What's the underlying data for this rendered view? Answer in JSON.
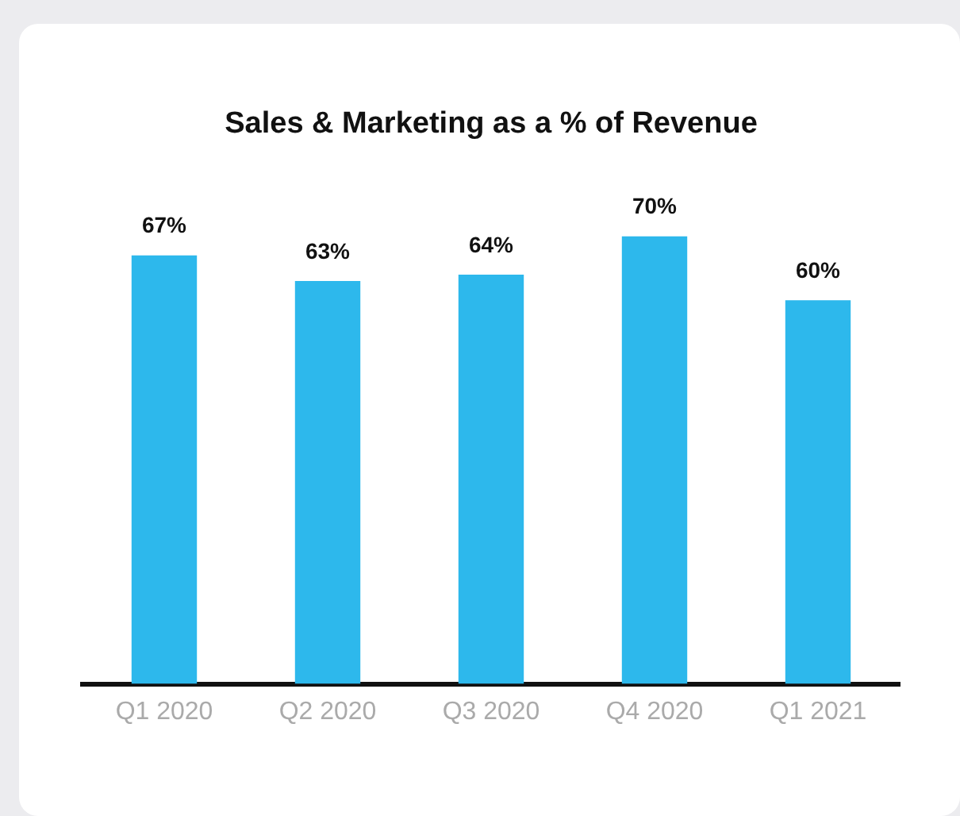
{
  "chart_data": {
    "type": "bar",
    "title": "Sales & Marketing as a % of Revenue",
    "categories": [
      "Q1 2020",
      "Q2 2020",
      "Q3 2020",
      "Q4 2020",
      "Q1 2021"
    ],
    "values": [
      67,
      63,
      64,
      70,
      60
    ],
    "value_labels": [
      "67%",
      "63%",
      "64%",
      "70%",
      "60%"
    ],
    "color": "#2db8ec",
    "tick_labels": "x",
    "grid": false,
    "legend": false
  }
}
